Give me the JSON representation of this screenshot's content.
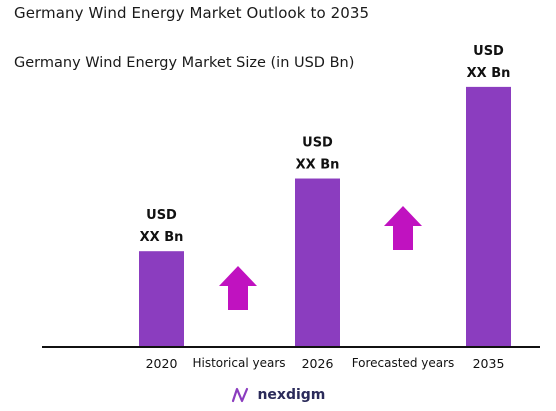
{
  "title": "Germany Wind Energy Market Outlook to 2035",
  "chart_data": {
    "type": "bar",
    "title": "Germany Wind Energy Market Size (in USD Bn)",
    "categories": [
      "2020",
      "2026",
      "2035"
    ],
    "values": [
      30,
      53,
      82
    ],
    "value_labels": [
      [
        "USD",
        "XX Bn"
      ],
      [
        "USD",
        "XX Bn"
      ],
      [
        "USD",
        "XX Bn"
      ]
    ],
    "ylim": [
      0,
      100
    ],
    "bar_color": "#8b3dbf",
    "arrow_color": "#c012c0",
    "period_labels": [
      "Historical years",
      "Forecasted years"
    ],
    "grid": false,
    "legend": "none"
  },
  "brand": {
    "name": "nexdigm",
    "icon": "nexdigm-logo-icon",
    "color": "#2b2b5a"
  }
}
